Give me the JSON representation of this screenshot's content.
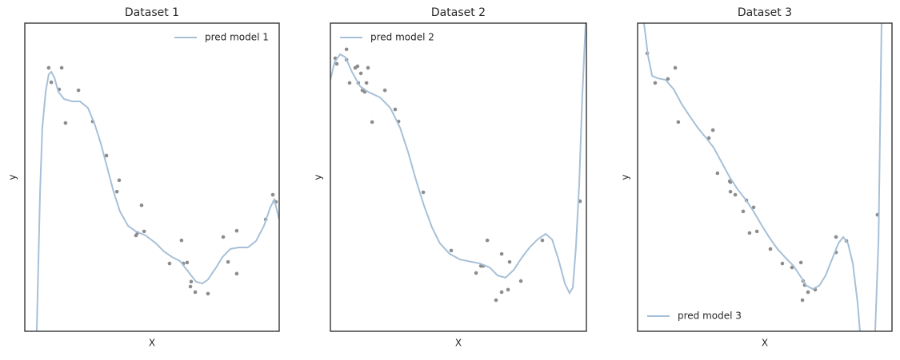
{
  "chart_data": [
    {
      "type": "line",
      "title": "Dataset 1",
      "xlabel": "X",
      "ylabel": "y",
      "xlim": [
        0,
        100
      ],
      "ylim": [
        0,
        100
      ],
      "legend": "upper right",
      "series": [
        {
          "name": "pred model 1",
          "color": "#a7c0d7",
          "x": [
            4.7,
            6.0,
            6.9,
            8.2,
            9.4,
            10.4,
            11.6,
            13.2,
            15.4,
            18.6,
            21.7,
            24.8,
            27.4,
            29.9,
            32.4,
            34.9,
            37.4,
            40.6,
            43.7,
            47.5,
            51.6,
            54.7,
            57.9,
            61.0,
            64.2,
            67.3,
            69.8,
            72.0,
            75.2,
            77.7,
            80.8,
            84.0,
            87.7,
            90.9,
            94.0,
            96.5,
            98.1,
            100
          ],
          "values": [
            0,
            45.3,
            66.1,
            77.7,
            83.4,
            84.2,
            82.4,
            77.7,
            75.4,
            74.6,
            74.6,
            72.5,
            67.4,
            60.9,
            53.1,
            45.3,
            38.9,
            34.2,
            32.4,
            31.1,
            28.5,
            25.9,
            24.1,
            22.8,
            19.4,
            16.1,
            15.5,
            16.8,
            20.7,
            24.1,
            26.7,
            27.2,
            27.2,
            29.3,
            34.2,
            40.2,
            42.7,
            36.3
          ]
        }
      ],
      "scatter": {
        "color": "#8c8c8c",
        "x": [
          9.4,
          10.4,
          14.5,
          13.5,
          16.0,
          21.1,
          26.7,
          32.1,
          36.2,
          37.1,
          43.7,
          44.3,
          45.9,
          46.9,
          56.9,
          61.6,
          62.3,
          63.8,
          65.4,
          65.1,
          67.0,
          72.0,
          78.0,
          79.9,
          83.3,
          83.3,
          94.7,
          97.5,
          98.1,
          98.7
        ],
        "values": [
          85.5,
          80.8,
          85.5,
          78.5,
          67.6,
          78.2,
          68.1,
          57.0,
          45.3,
          49.0,
          31.1,
          31.9,
          40.9,
          32.4,
          22.0,
          29.5,
          22.0,
          22.3,
          16.1,
          14.5,
          12.7,
          12.2,
          30.6,
          22.5,
          32.6,
          18.7,
          36.3,
          44.3,
          42.2,
          42.0
        ]
      }
    },
    {
      "type": "line",
      "title": "Dataset 2",
      "xlabel": "X",
      "ylabel": "y",
      "xlim": [
        0,
        100
      ],
      "ylim": [
        0,
        100
      ],
      "legend": "upper left",
      "series": [
        {
          "name": "pred model 2",
          "color": "#a7c0d7",
          "x": [
            0,
            1.6,
            3.8,
            5.9,
            8.4,
            11.6,
            14.7,
            19.4,
            23.4,
            27.2,
            30.3,
            33.4,
            36.6,
            39.7,
            42.8,
            46.6,
            50.6,
            55.3,
            58.4,
            62.2,
            65.3,
            68.4,
            71.6,
            74.7,
            77.8,
            80.9,
            84.1,
            86.6,
            89.1,
            91.6,
            93.4,
            94.7,
            95.9,
            97.2,
            98.4,
            99.7
          ],
          "values": [
            81.6,
            87.3,
            89.9,
            88.9,
            84.2,
            79.5,
            77.7,
            75.9,
            72.5,
            66.1,
            58.3,
            49.2,
            40.7,
            33.7,
            28.5,
            25.1,
            23.3,
            22.5,
            22.0,
            20.7,
            18.1,
            17.4,
            19.9,
            23.8,
            27.2,
            29.8,
            31.6,
            29.8,
            23.3,
            15.5,
            12.4,
            14.2,
            27.2,
            47.9,
            76.4,
            100
          ]
        }
      ],
      "scatter": {
        "color": "#8c8c8c",
        "x": [
          1.9,
          2.5,
          6.3,
          6.3,
          7.5,
          9.7,
          10.6,
          10.9,
          11.9,
          12.5,
          13.4,
          14.1,
          14.7,
          16.3,
          21.3,
          25.3,
          26.6,
          36.3,
          47.2,
          56.9,
          58.8,
          59.7,
          61.3,
          64.7,
          66.9,
          66.9,
          69.4,
          70.0,
          74.4,
          82.8,
          97.5
        ],
        "values": [
          88.6,
          86.8,
          91.5,
          88.1,
          80.6,
          85.5,
          86.0,
          80.6,
          83.7,
          78.2,
          77.7,
          80.6,
          85.5,
          67.9,
          78.2,
          72.0,
          68.1,
          45.1,
          26.2,
          18.9,
          21.2,
          21.2,
          29.5,
          10.1,
          12.7,
          25.1,
          13.5,
          22.5,
          16.3,
          29.5,
          42.2
        ]
      }
    },
    {
      "type": "line",
      "title": "Dataset 3",
      "xlabel": "X",
      "ylabel": "y",
      "xlim": [
        0,
        100
      ],
      "ylim": [
        0,
        100
      ],
      "legend": "lower left",
      "series": [
        {
          "name": "pred model 3",
          "color": "#a7c0d7",
          "x": [
            2.5,
            4.1,
            5.7,
            7.9,
            11.0,
            14.2,
            17.3,
            20.4,
            23.6,
            26.7,
            29.9,
            33.0,
            36.2,
            39.3,
            42.5,
            45.6,
            48.7,
            51.9,
            55.0,
            58.2,
            61.3,
            63.8,
            66.4,
            68.9,
            71.4,
            73.9,
            76.4,
            78.9,
            80.8,
            82.7,
            84.6,
            86.5,
            87.4,
            90.4,
            93.4,
            94.7,
            95.9
          ],
          "values": [
            100,
            89.4,
            82.9,
            82.1,
            81.6,
            78.5,
            73.8,
            69.9,
            66.1,
            63.0,
            59.6,
            54.9,
            50.0,
            46.1,
            42.7,
            38.9,
            34.5,
            30.3,
            26.7,
            23.8,
            21.2,
            18.1,
            14.8,
            13.7,
            14.8,
            18.1,
            23.3,
            28.5,
            30.6,
            28.5,
            22.0,
            9.1,
            0,
            null,
            0,
            29.8,
            100
          ]
        }
      ],
      "scatter": {
        "color": "#8c8c8c",
        "x": [
          3.8,
          6.9,
          11.9,
          14.8,
          16.0,
          28.0,
          29.6,
          31.4,
          36.2,
          36.5,
          36.5,
          38.4,
          41.5,
          42.8,
          44.0,
          45.6,
          46.9,
          52.2,
          56.9,
          60.7,
          64.2,
          65.1,
          64.8,
          65.7,
          67.0,
          69.8,
          78.0,
          78.0,
          82.1,
          94.3
        ],
        "values": [
          90.2,
          80.6,
          81.9,
          85.5,
          67.9,
          62.7,
          65.3,
          51.3,
          48.7,
          45.3,
          48.4,
          44.3,
          38.9,
          42.5,
          31.9,
          40.2,
          32.4,
          26.7,
          22.0,
          20.7,
          22.3,
          16.3,
          10.1,
          15.0,
          12.7,
          13.5,
          30.6,
          25.6,
          29.3,
          37.8
        ]
      }
    }
  ]
}
